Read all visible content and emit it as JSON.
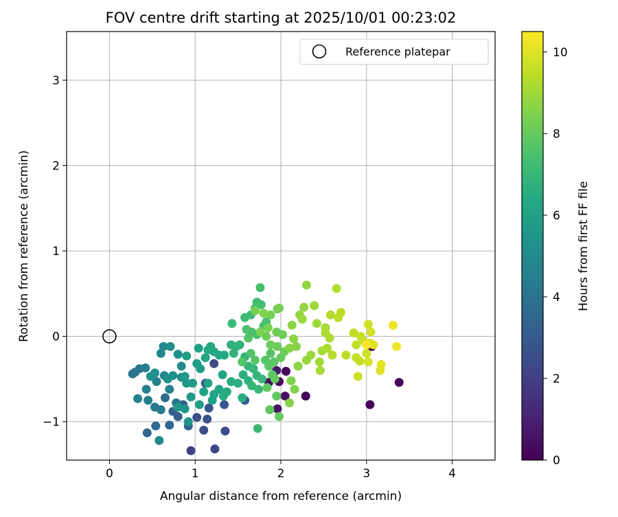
{
  "chart_data": {
    "type": "scatter",
    "title": "FOV centre drift starting at 2025/10/01 00:23:02",
    "xlabel": "Angular distance from reference (arcmin)",
    "ylabel": "Rotation from reference (arcmin)",
    "xlim": [
      -0.5,
      4.5
    ],
    "ylim": [
      -1.45,
      3.57
    ],
    "xticks": [
      0,
      1,
      2,
      3,
      4
    ],
    "yticks": [
      -1,
      0,
      1,
      2,
      3
    ],
    "xtick_labels": [
      "0",
      "1",
      "2",
      "3",
      "4"
    ],
    "ytick_labels": [
      "−1",
      "0",
      "1",
      "2",
      "3"
    ],
    "grid": true,
    "legend": {
      "position": "top-right",
      "label": "Reference platepar"
    },
    "reference_point": {
      "x": 0,
      "y": 0
    },
    "colorbar": {
      "label": "Hours from first FF file",
      "colormap": "viridis",
      "range": [
        0,
        10.5
      ],
      "ticks": [
        0,
        2,
        4,
        6,
        8,
        10
      ],
      "tick_labels": [
        "0",
        "2",
        "4",
        "6",
        "8",
        "10"
      ]
    },
    "points": [
      {
        "x": 3.06,
        "y": -0.12,
        "h": 0.1
      },
      {
        "x": 3.38,
        "y": -0.54,
        "h": 0.1
      },
      {
        "x": 3.04,
        "y": -0.8,
        "h": 0.1
      },
      {
        "x": 2.29,
        "y": -0.7,
        "h": 0.2
      },
      {
        "x": 2.06,
        "y": -0.41,
        "h": 0.2
      },
      {
        "x": 1.98,
        "y": -0.53,
        "h": 0.3
      },
      {
        "x": 1.86,
        "y": -0.54,
        "h": 0.4
      },
      {
        "x": 2.05,
        "y": -0.7,
        "h": 0.5
      },
      {
        "x": 1.96,
        "y": -0.85,
        "h": 0.6
      },
      {
        "x": 1.95,
        "y": -0.4,
        "h": 0.8
      },
      {
        "x": 0.95,
        "y": -1.34,
        "h": 2.0
      },
      {
        "x": 1.23,
        "y": -1.32,
        "h": 2.2
      },
      {
        "x": 1.35,
        "y": -1.11,
        "h": 2.4
      },
      {
        "x": 1.1,
        "y": -1.1,
        "h": 2.5
      },
      {
        "x": 1.02,
        "y": -0.95,
        "h": 2.6
      },
      {
        "x": 1.14,
        "y": -0.97,
        "h": 2.7
      },
      {
        "x": 1.34,
        "y": -0.8,
        "h": 2.8
      },
      {
        "x": 1.16,
        "y": -0.84,
        "h": 2.9
      },
      {
        "x": 1.58,
        "y": -0.75,
        "h": 3.0
      },
      {
        "x": 1.22,
        "y": -0.32,
        "h": 2.4
      },
      {
        "x": 1.12,
        "y": -0.55,
        "h": 2.8
      },
      {
        "x": 0.8,
        "y": -0.94,
        "h": 3.1
      },
      {
        "x": 0.92,
        "y": -1.05,
        "h": 3.2
      },
      {
        "x": 0.74,
        "y": -0.88,
        "h": 3.3
      },
      {
        "x": 0.44,
        "y": -1.13,
        "h": 3.6
      },
      {
        "x": 0.54,
        "y": -1.05,
        "h": 3.7
      },
      {
        "x": 0.7,
        "y": -1.04,
        "h": 3.5
      },
      {
        "x": 0.86,
        "y": -0.8,
        "h": 3.4
      },
      {
        "x": 0.65,
        "y": -0.72,
        "h": 3.8
      },
      {
        "x": 0.3,
        "y": -0.42,
        "h": 3.9
      },
      {
        "x": 0.27,
        "y": -0.44,
        "h": 4.0
      },
      {
        "x": 0.35,
        "y": -0.38,
        "h": 4.2
      },
      {
        "x": 0.42,
        "y": -0.37,
        "h": 4.4
      },
      {
        "x": 0.43,
        "y": -0.62,
        "h": 4.5
      },
      {
        "x": 0.53,
        "y": -0.83,
        "h": 4.3
      },
      {
        "x": 0.6,
        "y": -0.86,
        "h": 4.4
      },
      {
        "x": 0.78,
        "y": -0.78,
        "h": 4.1
      },
      {
        "x": 0.7,
        "y": -0.62,
        "h": 4.6
      },
      {
        "x": 0.55,
        "y": -0.53,
        "h": 4.7
      },
      {
        "x": 0.64,
        "y": -0.46,
        "h": 4.8
      },
      {
        "x": 0.6,
        "y": -0.2,
        "h": 4.9
      },
      {
        "x": 0.63,
        "y": -0.12,
        "h": 5.0
      },
      {
        "x": 0.71,
        "y": -0.12,
        "h": 5.1
      },
      {
        "x": 0.8,
        "y": -0.21,
        "h": 5.2
      },
      {
        "x": 0.84,
        "y": -0.35,
        "h": 5.0
      },
      {
        "x": 0.84,
        "y": -0.48,
        "h": 5.1
      },
      {
        "x": 0.74,
        "y": -0.46,
        "h": 5.2
      },
      {
        "x": 0.68,
        "y": -0.5,
        "h": 5.3
      },
      {
        "x": 0.53,
        "y": -0.43,
        "h": 5.3
      },
      {
        "x": 0.48,
        "y": -0.47,
        "h": 5.4
      },
      {
        "x": 0.33,
        "y": -0.73,
        "h": 4.6
      },
      {
        "x": 0.45,
        "y": -0.75,
        "h": 4.5
      },
      {
        "x": 0.58,
        "y": -1.22,
        "h": 5.0
      },
      {
        "x": 0.92,
        "y": -1.0,
        "h": 5.5
      },
      {
        "x": 0.88,
        "y": -0.85,
        "h": 5.5
      },
      {
        "x": 0.8,
        "y": -0.83,
        "h": 5.6
      },
      {
        "x": 0.95,
        "y": -0.71,
        "h": 5.6
      },
      {
        "x": 0.9,
        "y": -0.55,
        "h": 5.6
      },
      {
        "x": 0.88,
        "y": -0.47,
        "h": 5.7
      },
      {
        "x": 0.97,
        "y": -0.55,
        "h": 5.7
      },
      {
        "x": 1.06,
        "y": -0.38,
        "h": 5.8
      },
      {
        "x": 1.02,
        "y": -0.32,
        "h": 5.8
      },
      {
        "x": 1.04,
        "y": -0.14,
        "h": 5.9
      },
      {
        "x": 0.9,
        "y": -0.23,
        "h": 5.9
      },
      {
        "x": 1.05,
        "y": -0.8,
        "h": 6.0
      },
      {
        "x": 1.2,
        "y": -0.75,
        "h": 6.0
      },
      {
        "x": 1.1,
        "y": -0.65,
        "h": 6.1
      },
      {
        "x": 1.15,
        "y": -0.55,
        "h": 6.1
      },
      {
        "x": 1.22,
        "y": -0.68,
        "h": 6.2
      },
      {
        "x": 1.28,
        "y": -0.62,
        "h": 6.2
      },
      {
        "x": 1.32,
        "y": -0.45,
        "h": 6.2
      },
      {
        "x": 1.12,
        "y": -0.25,
        "h": 6.3
      },
      {
        "x": 1.18,
        "y": -0.12,
        "h": 6.3
      },
      {
        "x": 1.28,
        "y": -0.22,
        "h": 6.3
      },
      {
        "x": 1.34,
        "y": -0.22,
        "h": 6.4
      },
      {
        "x": 1.22,
        "y": -0.18,
        "h": 6.4
      },
      {
        "x": 1.15,
        "y": -0.16,
        "h": 6.4
      },
      {
        "x": 1.42,
        "y": -0.53,
        "h": 6.5
      },
      {
        "x": 1.37,
        "y": -0.65,
        "h": 6.5
      },
      {
        "x": 1.33,
        "y": -0.7,
        "h": 6.5
      },
      {
        "x": 1.55,
        "y": -0.72,
        "h": 6.6
      },
      {
        "x": 1.5,
        "y": -0.55,
        "h": 6.6
      },
      {
        "x": 1.56,
        "y": -0.45,
        "h": 6.6
      },
      {
        "x": 1.62,
        "y": -0.52,
        "h": 6.7
      },
      {
        "x": 1.42,
        "y": -0.1,
        "h": 6.7
      },
      {
        "x": 1.48,
        "y": -0.12,
        "h": 6.7
      },
      {
        "x": 1.52,
        "y": -0.1,
        "h": 6.8
      },
      {
        "x": 1.45,
        "y": -0.2,
        "h": 6.8
      },
      {
        "x": 1.58,
        "y": -0.24,
        "h": 6.8
      },
      {
        "x": 1.62,
        "y": -0.35,
        "h": 6.9
      },
      {
        "x": 1.68,
        "y": -0.38,
        "h": 6.9
      },
      {
        "x": 1.72,
        "y": -0.46,
        "h": 6.9
      },
      {
        "x": 1.78,
        "y": -0.5,
        "h": 7.0
      },
      {
        "x": 1.74,
        "y": -0.62,
        "h": 7.0
      },
      {
        "x": 1.66,
        "y": -0.58,
        "h": 7.0
      },
      {
        "x": 1.73,
        "y": -1.08,
        "h": 7.1
      },
      {
        "x": 1.43,
        "y": 0.15,
        "h": 7.1
      },
      {
        "x": 1.58,
        "y": 0.22,
        "h": 7.2
      },
      {
        "x": 1.65,
        "y": 0.25,
        "h": 7.2
      },
      {
        "x": 1.7,
        "y": 0.33,
        "h": 7.3
      },
      {
        "x": 1.72,
        "y": 0.4,
        "h": 7.3
      },
      {
        "x": 1.77,
        "y": 0.37,
        "h": 7.3
      },
      {
        "x": 1.76,
        "y": 0.57,
        "h": 7.4
      },
      {
        "x": 1.8,
        "y": 0.12,
        "h": 7.4
      },
      {
        "x": 1.83,
        "y": 0.17,
        "h": 7.4
      },
      {
        "x": 1.6,
        "y": 0.08,
        "h": 7.5
      },
      {
        "x": 1.66,
        "y": 0.05,
        "h": 7.5
      },
      {
        "x": 1.72,
        "y": 0.02,
        "h": 7.5
      },
      {
        "x": 1.62,
        "y": -0.02,
        "h": 7.6
      },
      {
        "x": 1.55,
        "y": -0.3,
        "h": 7.6
      },
      {
        "x": 1.65,
        "y": -0.2,
        "h": 7.6
      },
      {
        "x": 1.7,
        "y": -0.28,
        "h": 7.7
      },
      {
        "x": 1.82,
        "y": -0.28,
        "h": 7.7
      },
      {
        "x": 1.88,
        "y": -0.2,
        "h": 7.7
      },
      {
        "x": 1.92,
        "y": -0.3,
        "h": 7.8
      },
      {
        "x": 1.86,
        "y": -0.35,
        "h": 7.8
      },
      {
        "x": 1.9,
        "y": -0.45,
        "h": 7.8
      },
      {
        "x": 1.84,
        "y": -0.6,
        "h": 7.9
      },
      {
        "x": 1.95,
        "y": -0.7,
        "h": 7.9
      },
      {
        "x": 1.87,
        "y": -0.86,
        "h": 7.9
      },
      {
        "x": 1.98,
        "y": -0.94,
        "h": 8.0
      },
      {
        "x": 1.93,
        "y": -0.5,
        "h": 8.0
      },
      {
        "x": 2.0,
        "y": -0.25,
        "h": 8.0
      },
      {
        "x": 2.04,
        "y": -0.18,
        "h": 8.1
      },
      {
        "x": 1.96,
        "y": -0.12,
        "h": 8.1
      },
      {
        "x": 1.88,
        "y": -0.1,
        "h": 8.1
      },
      {
        "x": 1.83,
        "y": 0.0,
        "h": 8.2
      },
      {
        "x": 1.95,
        "y": 0.05,
        "h": 8.2
      },
      {
        "x": 2.02,
        "y": 0.02,
        "h": 8.2
      },
      {
        "x": 1.88,
        "y": 0.25,
        "h": 8.3
      },
      {
        "x": 1.96,
        "y": 0.32,
        "h": 8.3
      },
      {
        "x": 1.98,
        "y": 0.33,
        "h": 8.3
      },
      {
        "x": 1.85,
        "y": 0.1,
        "h": 8.4
      },
      {
        "x": 1.76,
        "y": 0.05,
        "h": 8.4
      },
      {
        "x": 1.7,
        "y": 0.3,
        "h": 8.4
      },
      {
        "x": 1.8,
        "y": 0.27,
        "h": 8.5
      },
      {
        "x": 2.12,
        "y": -0.52,
        "h": 8.5
      },
      {
        "x": 2.16,
        "y": -0.62,
        "h": 8.5
      },
      {
        "x": 2.1,
        "y": -0.78,
        "h": 8.6
      },
      {
        "x": 2.1,
        "y": -0.14,
        "h": 8.6
      },
      {
        "x": 2.18,
        "y": -0.12,
        "h": 8.6
      },
      {
        "x": 2.15,
        "y": -0.03,
        "h": 8.7
      },
      {
        "x": 2.2,
        "y": -0.35,
        "h": 8.7
      },
      {
        "x": 2.13,
        "y": 0.13,
        "h": 8.7
      },
      {
        "x": 2.22,
        "y": 0.25,
        "h": 8.8
      },
      {
        "x": 2.27,
        "y": 0.34,
        "h": 8.8
      },
      {
        "x": 2.3,
        "y": 0.6,
        "h": 8.8
      },
      {
        "x": 2.25,
        "y": 0.2,
        "h": 8.9
      },
      {
        "x": 2.3,
        "y": -0.28,
        "h": 8.9
      },
      {
        "x": 2.35,
        "y": -0.22,
        "h": 8.9
      },
      {
        "x": 2.39,
        "y": 0.36,
        "h": 9.0
      },
      {
        "x": 2.42,
        "y": 0.15,
        "h": 9.0
      },
      {
        "x": 2.45,
        "y": -0.3,
        "h": 9.0
      },
      {
        "x": 2.48,
        "y": -0.17,
        "h": 9.1
      },
      {
        "x": 2.46,
        "y": -0.4,
        "h": 9.1
      },
      {
        "x": 2.52,
        "y": 0.1,
        "h": 9.1
      },
      {
        "x": 2.52,
        "y": 0.04,
        "h": 9.2
      },
      {
        "x": 2.57,
        "y": -0.02,
        "h": 9.2
      },
      {
        "x": 2.54,
        "y": -0.14,
        "h": 9.2
      },
      {
        "x": 2.6,
        "y": -0.22,
        "h": 9.3
      },
      {
        "x": 2.58,
        "y": 0.25,
        "h": 9.3
      },
      {
        "x": 2.65,
        "y": 0.56,
        "h": 9.3
      },
      {
        "x": 2.67,
        "y": 0.22,
        "h": 9.4
      },
      {
        "x": 2.7,
        "y": 0.28,
        "h": 9.4
      },
      {
        "x": 2.76,
        "y": -0.22,
        "h": 9.4
      },
      {
        "x": 2.85,
        "y": 0.04,
        "h": 9.5
      },
      {
        "x": 2.88,
        "y": -0.1,
        "h": 9.5
      },
      {
        "x": 2.88,
        "y": -0.25,
        "h": 9.5
      },
      {
        "x": 2.92,
        "y": -0.29,
        "h": 9.6
      },
      {
        "x": 2.93,
        "y": 0.0,
        "h": 9.6
      },
      {
        "x": 2.96,
        "y": -0.05,
        "h": 9.6
      },
      {
        "x": 2.9,
        "y": -0.47,
        "h": 9.7
      },
      {
        "x": 3.0,
        "y": -0.2,
        "h": 9.7
      },
      {
        "x": 3.02,
        "y": 0.14,
        "h": 9.8
      },
      {
        "x": 3.05,
        "y": 0.05,
        "h": 9.8
      },
      {
        "x": 3.02,
        "y": -0.3,
        "h": 9.9
      },
      {
        "x": 3.04,
        "y": -0.08,
        "h": 9.9
      },
      {
        "x": 3.08,
        "y": -0.1,
        "h": 10.0
      },
      {
        "x": 3.16,
        "y": -0.4,
        "h": 10.0
      },
      {
        "x": 3.17,
        "y": -0.33,
        "h": 10.1
      },
      {
        "x": 3.31,
        "y": 0.13,
        "h": 10.2
      },
      {
        "x": 3.35,
        "y": -0.12,
        "h": 10.3
      },
      {
        "x": 3.0,
        "y": -0.1,
        "h": 10.4
      }
    ]
  }
}
